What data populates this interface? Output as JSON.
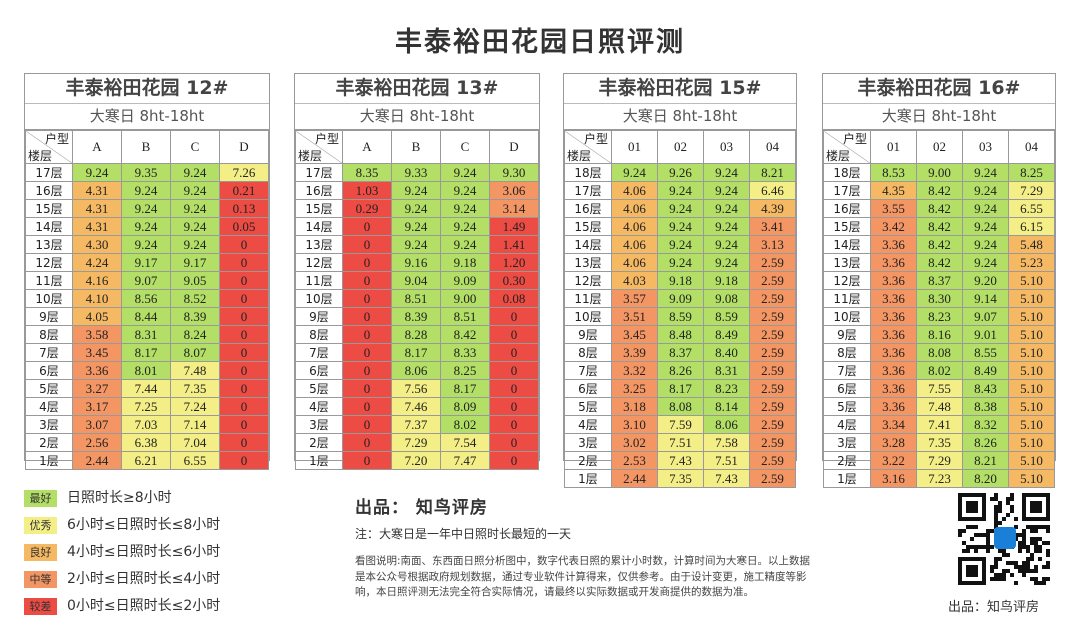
{
  "title": "丰泰裕田花园日照评测",
  "tables": [
    {
      "name": "丰泰裕田花园 12#",
      "subtitle": "大寒日 8ht-18ht",
      "corner_top": "户型",
      "corner_bottom": "楼层",
      "columns": [
        "A",
        "B",
        "C",
        "D"
      ],
      "rows": [
        [
          "17层",
          "9.24",
          "9.35",
          "9.24",
          "7.26"
        ],
        [
          "16层",
          "4.31",
          "9.24",
          "9.24",
          "0.21"
        ],
        [
          "15层",
          "4.31",
          "9.24",
          "9.24",
          "0.13"
        ],
        [
          "14层",
          "4.31",
          "9.24",
          "9.24",
          "0.05"
        ],
        [
          "13层",
          "4.30",
          "9.24",
          "9.24",
          "0"
        ],
        [
          "12层",
          "4.24",
          "9.17",
          "9.17",
          "0"
        ],
        [
          "11层",
          "4.16",
          "9.07",
          "9.05",
          "0"
        ],
        [
          "10层",
          "4.10",
          "8.56",
          "8.52",
          "0"
        ],
        [
          "9层",
          "4.05",
          "8.44",
          "8.39",
          "0"
        ],
        [
          "8层",
          "3.58",
          "8.31",
          "8.24",
          "0"
        ],
        [
          "7层",
          "3.45",
          "8.17",
          "8.07",
          "0"
        ],
        [
          "6层",
          "3.36",
          "8.01",
          "7.48",
          "0"
        ],
        [
          "5层",
          "3.27",
          "7.44",
          "7.35",
          "0"
        ],
        [
          "4层",
          "3.17",
          "7.25",
          "7.24",
          "0"
        ],
        [
          "3层",
          "3.07",
          "7.03",
          "7.14",
          "0"
        ],
        [
          "2层",
          "2.56",
          "6.38",
          "7.04",
          "0"
        ],
        [
          "1层",
          "2.44",
          "6.21",
          "6.55",
          "0"
        ]
      ]
    },
    {
      "name": "丰泰裕田花园 13#",
      "subtitle": "大寒日 8ht-18ht",
      "corner_top": "户型",
      "corner_bottom": "楼层",
      "columns": [
        "A",
        "B",
        "C",
        "D"
      ],
      "rows": [
        [
          "17层",
          "8.35",
          "9.33",
          "9.24",
          "9.30"
        ],
        [
          "16层",
          "1.03",
          "9.24",
          "9.24",
          "3.06"
        ],
        [
          "15层",
          "0.29",
          "9.24",
          "9.24",
          "3.14"
        ],
        [
          "14层",
          "0",
          "9.24",
          "9.24",
          "1.49"
        ],
        [
          "13层",
          "0",
          "9.24",
          "9.24",
          "1.41"
        ],
        [
          "12层",
          "0",
          "9.16",
          "9.18",
          "1.20"
        ],
        [
          "11层",
          "0",
          "9.04",
          "9.09",
          "0.30"
        ],
        [
          "10层",
          "0",
          "8.51",
          "9.00",
          "0.08"
        ],
        [
          "9层",
          "0",
          "8.39",
          "8.51",
          "0"
        ],
        [
          "8层",
          "0",
          "8.28",
          "8.42",
          "0"
        ],
        [
          "7层",
          "0",
          "8.17",
          "8.33",
          "0"
        ],
        [
          "6层",
          "0",
          "8.06",
          "8.25",
          "0"
        ],
        [
          "5层",
          "0",
          "7.56",
          "8.17",
          "0"
        ],
        [
          "4层",
          "0",
          "7.46",
          "8.09",
          "0"
        ],
        [
          "3层",
          "0",
          "7.37",
          "8.02",
          "0"
        ],
        [
          "2层",
          "0",
          "7.29",
          "7.54",
          "0"
        ],
        [
          "1层",
          "0",
          "7.20",
          "7.47",
          "0"
        ]
      ]
    },
    {
      "name": "丰泰裕田花园 15#",
      "subtitle": "大寒日 8ht-18ht",
      "corner_top": "户型",
      "corner_bottom": "楼层",
      "columns": [
        "01",
        "02",
        "03",
        "04"
      ],
      "rows": [
        [
          "18层",
          "9.24",
          "9.26",
          "9.24",
          "8.21"
        ],
        [
          "17层",
          "4.06",
          "9.24",
          "9.24",
          "6.46"
        ],
        [
          "16层",
          "4.06",
          "9.24",
          "9.24",
          "4.39"
        ],
        [
          "15层",
          "4.06",
          "9.24",
          "9.24",
          "3.41"
        ],
        [
          "14层",
          "4.06",
          "9.24",
          "9.24",
          "3.13"
        ],
        [
          "13层",
          "4.06",
          "9.24",
          "9.24",
          "2.59"
        ],
        [
          "12层",
          "4.03",
          "9.18",
          "9.18",
          "2.59"
        ],
        [
          "11层",
          "3.57",
          "9.09",
          "9.08",
          "2.59"
        ],
        [
          "10层",
          "3.51",
          "8.59",
          "8.59",
          "2.59"
        ],
        [
          "9层",
          "3.45",
          "8.48",
          "8.49",
          "2.59"
        ],
        [
          "8层",
          "3.39",
          "8.37",
          "8.40",
          "2.59"
        ],
        [
          "7层",
          "3.32",
          "8.26",
          "8.31",
          "2.59"
        ],
        [
          "6层",
          "3.25",
          "8.17",
          "8.23",
          "2.59"
        ],
        [
          "5层",
          "3.18",
          "8.08",
          "8.14",
          "2.59"
        ],
        [
          "4层",
          "3.10",
          "7.59",
          "8.06",
          "2.59"
        ],
        [
          "3层",
          "3.02",
          "7.51",
          "7.58",
          "2.59"
        ],
        [
          "2层",
          "2.53",
          "7.43",
          "7.51",
          "2.59"
        ],
        [
          "1层",
          "2.44",
          "7.35",
          "7.43",
          "2.59"
        ]
      ]
    },
    {
      "name": "丰泰裕田花园 16#",
      "subtitle": "大寒日 8ht-18ht",
      "corner_top": "户型",
      "corner_bottom": "楼层",
      "columns": [
        "01",
        "02",
        "03",
        "04"
      ],
      "rows": [
        [
          "18层",
          "8.53",
          "9.00",
          "9.24",
          "8.25"
        ],
        [
          "17层",
          "4.35",
          "8.42",
          "9.24",
          "7.29"
        ],
        [
          "16层",
          "3.55",
          "8.42",
          "9.24",
          "6.55"
        ],
        [
          "15层",
          "3.42",
          "8.42",
          "9.24",
          "6.15"
        ],
        [
          "14层",
          "3.36",
          "8.42",
          "9.24",
          "5.48"
        ],
        [
          "13层",
          "3.36",
          "8.42",
          "9.24",
          "5.23"
        ],
        [
          "12层",
          "3.36",
          "8.37",
          "9.20",
          "5.10"
        ],
        [
          "11层",
          "3.36",
          "8.30",
          "9.14",
          "5.10"
        ],
        [
          "10层",
          "3.36",
          "8.23",
          "9.07",
          "5.10"
        ],
        [
          "9层",
          "3.36",
          "8.16",
          "9.01",
          "5.10"
        ],
        [
          "8层",
          "3.36",
          "8.08",
          "8.55",
          "5.10"
        ],
        [
          "7层",
          "3.36",
          "8.02",
          "8.49",
          "5.10"
        ],
        [
          "6层",
          "3.36",
          "7.55",
          "8.43",
          "5.10"
        ],
        [
          "5层",
          "3.36",
          "7.48",
          "8.38",
          "5.10"
        ],
        [
          "4层",
          "3.34",
          "7.41",
          "8.32",
          "5.10"
        ],
        [
          "3层",
          "3.28",
          "7.35",
          "8.26",
          "5.10"
        ],
        [
          "2层",
          "3.22",
          "7.29",
          "8.21",
          "5.10"
        ],
        [
          "1层",
          "3.16",
          "7.23",
          "8.20",
          "5.10"
        ]
      ]
    }
  ],
  "legend": [
    {
      "badge": "最好",
      "text": "日照时长≥8小时",
      "color": "#b3df66",
      "min": 8
    },
    {
      "badge": "优秀",
      "text": "6小时≤日照时长≤8小时",
      "color": "#f4ee86",
      "min": 6
    },
    {
      "badge": "良好",
      "text": "4小时≤日照时长≤6小时",
      "color": "#f6b963",
      "min": 4
    },
    {
      "badge": "中等",
      "text": "2小时≤日照时长≤4小时",
      "color": "#f39663",
      "min": 2
    },
    {
      "badge": "较差",
      "text": "0小时≤日照时长≤2小时",
      "color": "#ec4c44",
      "min": 0
    }
  ],
  "producer": "出品： 知鸟评房",
  "note": "注：大寒日是一年中日照时长最短的一天",
  "description": "看图说明:南面、东西面日照分析图中，数字代表日照的累计小时数，计算时间为大寒日。以上数据是本公众号根据政府规划数据，通过专业软件计算得来，仅供参考。由于设计变更，施工精度等影响，本日照评测无法完全符合实际情况，请最终以实际数据或开发商提供的数据为准。",
  "qr_caption": "出品：知鸟评房"
}
